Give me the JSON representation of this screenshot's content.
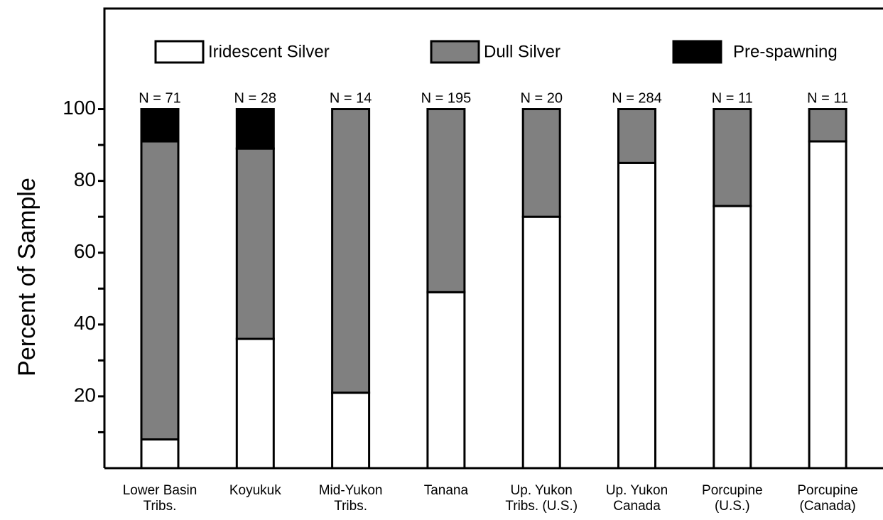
{
  "chart_data": {
    "type": "stacked_bar",
    "ylabel": "Percent of Sample",
    "categories": [
      [
        "Lower Basin",
        "Tribs."
      ],
      [
        "Koyukuk"
      ],
      [
        "Mid-Yukon",
        "Tribs."
      ],
      [
        "Tanana"
      ],
      [
        "Up. Yukon",
        "Tribs. (U.S.)"
      ],
      [
        "Up. Yukon",
        "Canada"
      ],
      [
        "Porcupine",
        "(U.S.)"
      ],
      [
        "Porcupine",
        "(Canada)"
      ]
    ],
    "n_labels": [
      "N = 71",
      "N = 28",
      "N = 14",
      "N = 195",
      "N = 20",
      "N = 284",
      "N = 11",
      "N = 11"
    ],
    "series": [
      {
        "name": "Iridescent Silver",
        "color": "#ffffff",
        "values": [
          8,
          36,
          21,
          49,
          70,
          85,
          73,
          91
        ]
      },
      {
        "name": "Dull Silver",
        "color": "#808080",
        "values": [
          83,
          53,
          79,
          51,
          30,
          15,
          27,
          9
        ]
      },
      {
        "name": "Pre-spawning",
        "color": "#000000",
        "values": [
          9,
          11,
          0,
          0,
          0,
          0,
          0,
          0
        ]
      }
    ],
    "ylim": [
      0,
      128
    ],
    "yticks": [
      20,
      40,
      60,
      80,
      100
    ],
    "minor_yticks": [
      10,
      30,
      50,
      70,
      90
    ]
  }
}
